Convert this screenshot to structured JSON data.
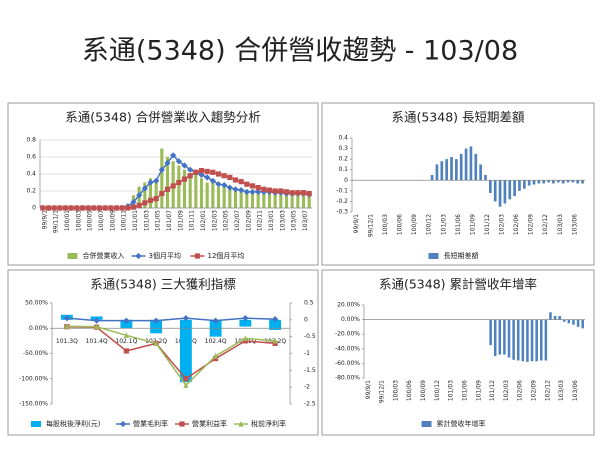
{
  "title": "系通(5348) 合併營收趨勢 - 103/08",
  "chart_data": [
    {
      "type": "combo",
      "title": "系通(5348) 合併營業收入趨勢分析",
      "categories": [
        "99/9/1",
        null,
        "99/11/1",
        null,
        "100/01",
        null,
        "100/03",
        null,
        "100/05",
        null,
        "100/07",
        null,
        "100/09",
        null,
        "100/11",
        null,
        "101/01",
        null,
        "101/03",
        null,
        "101/05",
        null,
        "101/07",
        null,
        "101/09",
        null,
        "101/11",
        null,
        "102/01",
        null,
        "102/03",
        null,
        "102/05",
        null,
        "102/07",
        null,
        "102/09",
        null,
        "102/11",
        null,
        "103/01",
        null,
        "103/03",
        null,
        "103/05",
        null,
        "103/07",
        null
      ],
      "series": [
        {
          "name": "合併營業收入",
          "type": "bar",
          "color": "#9bbb59",
          "values": [
            0,
            0,
            0,
            0,
            0,
            0,
            0,
            0,
            0,
            0,
            0,
            0,
            0,
            0,
            0,
            0.05,
            0.15,
            0.25,
            0.3,
            0.35,
            0.3,
            0.7,
            0.6,
            0.55,
            0.5,
            0.45,
            0.4,
            0.42,
            0.35,
            0.3,
            0.3,
            0.25,
            0.25,
            0.22,
            0.2,
            0.2,
            0.18,
            0.2,
            0.18,
            0.2,
            0.18,
            0.17,
            0.18,
            0.16,
            0.18,
            0.17,
            0.15,
            0.14
          ]
        },
        {
          "name": "3個月平均",
          "type": "line",
          "marker": "diamond",
          "color": "#4472c4",
          "values": [
            0,
            0,
            0,
            0,
            0,
            0,
            0,
            0,
            0,
            0,
            0,
            0,
            0,
            0,
            0,
            0.02,
            0.07,
            0.15,
            0.23,
            0.3,
            0.32,
            0.45,
            0.53,
            0.62,
            0.55,
            0.5,
            0.45,
            0.42,
            0.39,
            0.36,
            0.32,
            0.28,
            0.27,
            0.24,
            0.22,
            0.21,
            0.19,
            0.19,
            0.19,
            0.19,
            0.19,
            0.18,
            0.18,
            0.17,
            0.17,
            0.17,
            0.17,
            0.16
          ]
        },
        {
          "name": "12個月平均",
          "type": "line",
          "marker": "square",
          "color": "#c0504d",
          "values": [
            0,
            0,
            0,
            0,
            0,
            0,
            0,
            0,
            0,
            0,
            0,
            0,
            0,
            0,
            0,
            0,
            0.01,
            0.03,
            0.06,
            0.09,
            0.11,
            0.17,
            0.22,
            0.26,
            0.3,
            0.34,
            0.38,
            0.42,
            0.44,
            0.43,
            0.42,
            0.4,
            0.38,
            0.36,
            0.33,
            0.31,
            0.28,
            0.26,
            0.24,
            0.22,
            0.21,
            0.2,
            0.2,
            0.19,
            0.18,
            0.18,
            0.18,
            0.17
          ]
        }
      ],
      "ylim": [
        0,
        0.8
      ],
      "yticks": [
        0,
        0.2,
        0.4,
        0.6,
        0.8
      ],
      "grid": true
    },
    {
      "type": "bar",
      "title": "系通(5348) 長短期差額",
      "categories": [
        "99/9/1",
        null,
        null,
        "99/12/1",
        null,
        null,
        "100/03",
        null,
        null,
        "100/06",
        null,
        null,
        "100/09",
        null,
        null,
        "100/12",
        null,
        null,
        "101/03",
        null,
        null,
        "101/06",
        null,
        null,
        "101/09",
        null,
        null,
        "101/12",
        null,
        null,
        "102/03",
        null,
        null,
        "102/06",
        null,
        null,
        "102/09",
        null,
        null,
        "102/12",
        null,
        null,
        "103/03",
        null,
        null,
        "103/06",
        null,
        null
      ],
      "series": [
        {
          "name": "長短期差額",
          "type": "bar",
          "color": "#4f81bd",
          "values": [
            0,
            0,
            0,
            0,
            0,
            0,
            0,
            0,
            0,
            0,
            0,
            0,
            0,
            0,
            0,
            0,
            0.05,
            0.15,
            0.18,
            0.2,
            0.22,
            0.2,
            0.25,
            0.3,
            0.32,
            0.25,
            0.15,
            0.05,
            -0.12,
            -0.2,
            -0.25,
            -0.22,
            -0.18,
            -0.15,
            -0.1,
            -0.08,
            -0.05,
            -0.04,
            -0.03,
            -0.03,
            -0.02,
            -0.03,
            -0.02,
            -0.03,
            -0.02,
            -0.02,
            -0.03,
            -0.03
          ]
        }
      ],
      "ylim": [
        -0.3,
        0.4
      ],
      "yticks": [
        -0.3,
        -0.2,
        -0.1,
        0,
        0.1,
        0.2,
        0.3,
        0.4
      ],
      "grid": false
    },
    {
      "type": "combo",
      "title": "系通(5348) 三大獲利指標",
      "categories": [
        "101.3Q",
        "101.4Q",
        "102.1Q",
        "102.2Q",
        "102.3Q",
        "102.4Q",
        "103.1Q",
        "103.2Q"
      ],
      "series": [
        {
          "name": "每股稅後淨利(元)",
          "type": "bar",
          "axis": "y2",
          "color": "#00b0f0",
          "values": [
            0.15,
            0.1,
            -0.25,
            -0.4,
            -1.85,
            -0.5,
            -0.2,
            -0.3
          ]
        },
        {
          "name": "營業毛利率",
          "type": "line",
          "marker": "diamond",
          "color": "#4472c4",
          "values": [
            20,
            15,
            15,
            15,
            20,
            15,
            20,
            18
          ]
        },
        {
          "name": "營業利益率",
          "type": "line",
          "marker": "square",
          "color": "#c0504d",
          "values": [
            3,
            2,
            -45,
            -30,
            -100,
            -60,
            -25,
            -30
          ]
        },
        {
          "name": "稅前淨利率",
          "type": "line",
          "marker": "triangle",
          "color": "#9bbb59",
          "values": [
            4,
            3,
            -14,
            -30,
            -113,
            -55,
            -20,
            -25
          ]
        }
      ],
      "ylim": [
        -150,
        50
      ],
      "yticks": [
        {
          "value": -150,
          "label": "-150.00%"
        },
        {
          "value": -100,
          "label": "-100.00%"
        },
        {
          "value": -50,
          "label": "-50.00%"
        },
        {
          "value": 0,
          "label": "0.00%"
        },
        {
          "value": 50,
          "label": "50.00%"
        }
      ],
      "y2lim": [
        -2.5,
        0.5
      ],
      "y2ticks": [
        -2.5,
        -2,
        -1.5,
        -1,
        -0.5,
        0,
        0.5
      ],
      "grid": false
    },
    {
      "type": "bar",
      "title": "系通(5348) 累計營收年增率",
      "categories": [
        "99/9/1",
        null,
        null,
        "99/12/1",
        null,
        null,
        "100/03",
        null,
        null,
        "100/06",
        null,
        null,
        "100/09",
        null,
        null,
        "100/12",
        null,
        null,
        "101/03",
        null,
        null,
        "101/06",
        null,
        null,
        "101/09",
        null,
        null,
        "101/12",
        null,
        null,
        "102/03",
        null,
        null,
        "102/06",
        null,
        null,
        "102/09",
        null,
        null,
        "102/12",
        null,
        null,
        "103/03",
        null,
        null,
        "103/06",
        null,
        null
      ],
      "series": [
        {
          "name": "累計營收年增率",
          "type": "bar",
          "color": "#4f81bd",
          "values": [
            null,
            null,
            null,
            null,
            null,
            null,
            null,
            null,
            null,
            null,
            null,
            null,
            null,
            null,
            null,
            null,
            null,
            null,
            null,
            null,
            null,
            null,
            null,
            null,
            null,
            null,
            null,
            -35,
            -50,
            -48,
            -48,
            -52,
            -55,
            -56,
            -57,
            -58,
            -57,
            -57,
            -56,
            -56,
            10,
            5,
            5,
            -3,
            -5,
            -7,
            -10,
            -12
          ]
        }
      ],
      "ylim": [
        -80,
        20
      ],
      "yticks": [
        {
          "value": -80,
          "label": "-80.00%"
        },
        {
          "value": -60,
          "label": "-60.00%"
        },
        {
          "value": -40,
          "label": "-40.00%"
        },
        {
          "value": -20,
          "label": "-20.00%"
        },
        {
          "value": 0,
          "label": "0.00%"
        },
        {
          "value": 20,
          "label": "20.00%"
        }
      ],
      "grid": false
    }
  ]
}
